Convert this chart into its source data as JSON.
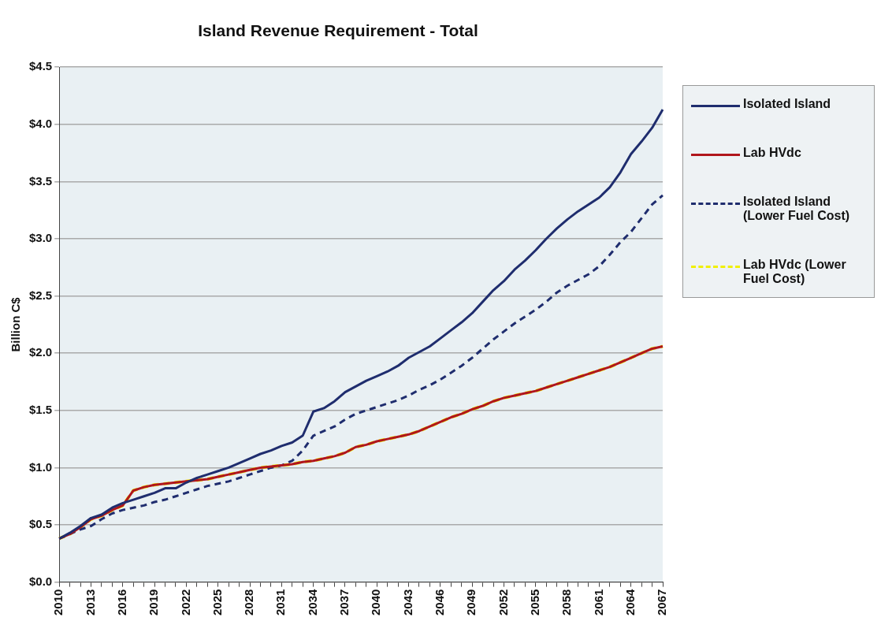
{
  "chart_data": {
    "type": "line",
    "title": "Island Revenue Requirement - Total",
    "ylabel": "Billion C$",
    "categories": [
      "2010",
      null,
      null,
      "2013",
      null,
      null,
      "2016",
      null,
      null,
      "2019",
      null,
      null,
      "2022",
      null,
      null,
      "2025",
      null,
      null,
      "2028",
      null,
      null,
      "2031",
      null,
      null,
      "2034",
      null,
      null,
      "2037",
      null,
      null,
      "2040",
      null,
      null,
      "2043",
      null,
      null,
      "2046",
      null,
      null,
      "2049",
      null,
      null,
      "2052",
      null,
      null,
      "2055",
      null,
      null,
      "2058",
      null,
      null,
      "2061",
      null,
      null,
      "2064",
      null,
      null,
      "2067"
    ],
    "series": [
      {
        "name": "Isolated Island",
        "color": "#1f2d6e",
        "line_style": "solid",
        "values": [
          0.38,
          0.43,
          0.49,
          0.56,
          0.59,
          0.65,
          0.69,
          0.72,
          0.75,
          0.78,
          0.82,
          0.82,
          0.87,
          0.91,
          0.94,
          0.97,
          1.0,
          1.04,
          1.08,
          1.12,
          1.15,
          1.19,
          1.22,
          1.28,
          1.49,
          1.52,
          1.58,
          1.66,
          1.71,
          1.76,
          1.8,
          1.84,
          1.89,
          1.96,
          2.01,
          2.06,
          2.13,
          2.2,
          2.27,
          2.35,
          2.45,
          2.55,
          2.63,
          2.73,
          2.81,
          2.9,
          3.0,
          3.09,
          3.17,
          3.24,
          3.3,
          3.36,
          3.45,
          3.58,
          3.74,
          3.85,
          3.97,
          4.13
        ]
      },
      {
        "name": "Lab HVdc",
        "color": "#b0161c",
        "line_style": "solid",
        "values": [
          0.38,
          0.42,
          0.48,
          0.55,
          0.58,
          0.63,
          0.67,
          0.8,
          0.83,
          0.85,
          0.86,
          0.87,
          0.88,
          0.89,
          0.9,
          0.92,
          0.94,
          0.96,
          0.98,
          1.0,
          1.01,
          1.02,
          1.03,
          1.05,
          1.06,
          1.08,
          1.1,
          1.13,
          1.18,
          1.2,
          1.23,
          1.25,
          1.27,
          1.29,
          1.32,
          1.36,
          1.4,
          1.44,
          1.47,
          1.51,
          1.54,
          1.58,
          1.61,
          1.63,
          1.65,
          1.67,
          1.7,
          1.73,
          1.76,
          1.79,
          1.82,
          1.85,
          1.88,
          1.92,
          1.96,
          2.0,
          2.04,
          2.06
        ]
      },
      {
        "name": "Isolated Island (Lower Fuel Cost)",
        "color": "#1f2d6e",
        "line_style": "dashed",
        "values": [
          0.38,
          0.42,
          0.46,
          0.49,
          0.55,
          0.6,
          0.63,
          0.65,
          0.67,
          0.7,
          0.72,
          0.75,
          0.78,
          0.81,
          0.84,
          0.86,
          0.88,
          0.91,
          0.94,
          0.97,
          1.0,
          1.02,
          1.06,
          1.15,
          1.28,
          1.32,
          1.36,
          1.42,
          1.47,
          1.5,
          1.53,
          1.56,
          1.59,
          1.63,
          1.68,
          1.72,
          1.77,
          1.83,
          1.89,
          1.96,
          2.04,
          2.12,
          2.19,
          2.26,
          2.32,
          2.38,
          2.45,
          2.53,
          2.59,
          2.64,
          2.69,
          2.76,
          2.86,
          2.97,
          3.06,
          3.18,
          3.3,
          3.38
        ]
      },
      {
        "name": "Lab HVdc (Lower Fuel Cost)",
        "color": "#f0f000",
        "line_style": "dashed",
        "values": [
          0.38,
          0.42,
          0.48,
          0.55,
          0.58,
          0.63,
          0.67,
          0.8,
          0.83,
          0.85,
          0.86,
          0.87,
          0.88,
          0.89,
          0.9,
          0.92,
          0.94,
          0.96,
          0.98,
          1.0,
          1.01,
          1.02,
          1.03,
          1.05,
          1.06,
          1.08,
          1.1,
          1.13,
          1.18,
          1.2,
          1.23,
          1.25,
          1.27,
          1.29,
          1.32,
          1.36,
          1.4,
          1.44,
          1.47,
          1.51,
          1.54,
          1.58,
          1.61,
          1.63,
          1.65,
          1.67,
          1.7,
          1.73,
          1.76,
          1.79,
          1.82,
          1.85,
          1.88,
          1.92,
          1.96,
          2.0,
          2.04,
          2.06
        ]
      }
    ],
    "ylim": [
      0,
      4.5
    ],
    "yticks": [
      {
        "value": 0,
        "label": "$0.0"
      },
      {
        "value": 0.5,
        "label": "$0.5"
      },
      {
        "value": 1,
        "label": "$1.0"
      },
      {
        "value": 1.5,
        "label": "$1.5"
      },
      {
        "value": 2,
        "label": "$2.0"
      },
      {
        "value": 2.5,
        "label": "$2.5"
      },
      {
        "value": 3,
        "label": "$3.0"
      },
      {
        "value": 3.5,
        "label": "$3.5"
      },
      {
        "value": 4,
        "label": "$4.0"
      },
      {
        "value": 4.5,
        "label": "$4.5"
      }
    ],
    "grid": "y",
    "legend": "right",
    "marker": "none"
  }
}
